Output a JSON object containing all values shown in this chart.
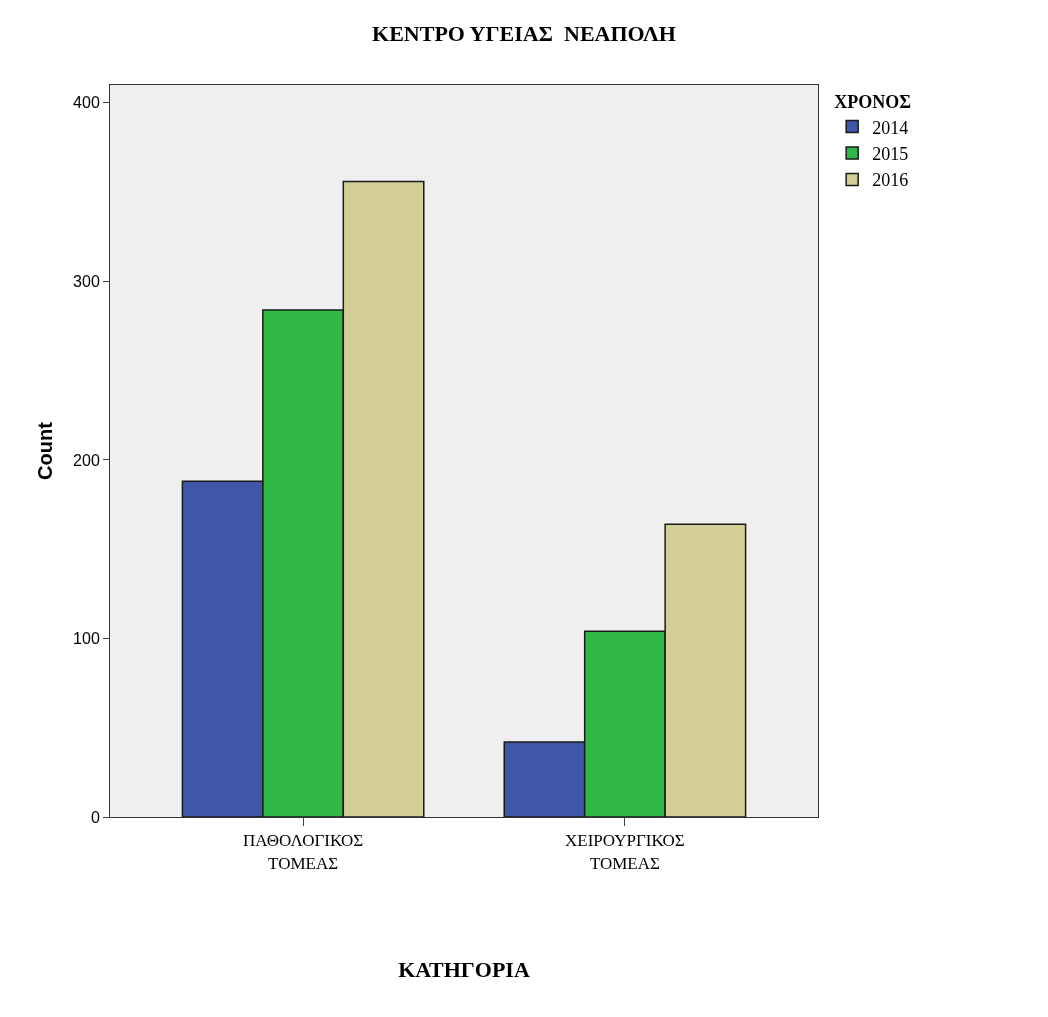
{
  "chart_data": {
    "type": "bar",
    "title": "ΚΕΝΤΡΟ ΥΓΕΙΑΣ  ΝΕΑΠΟΛΗ",
    "xlabel": "ΚΑΤΗΓΟΡΙΑ",
    "ylabel": "Count",
    "legend_title": "ΧΡΟΝΟΣ",
    "categories": [
      "ΠΑΘΟΛΟΓΙΚΟΣ\nΤΟΜΕΑΣ",
      "ΧΕΙΡΟΥΡΓΙΚΟΣ\nΤΟΜΕΑΣ"
    ],
    "series": [
      {
        "name": "2014",
        "color": "#3f57a8",
        "values": [
          188,
          42
        ]
      },
      {
        "name": "2015",
        "color": "#30b847",
        "values": [
          284,
          104
        ]
      },
      {
        "name": "2016",
        "color": "#d3cd96",
        "values": [
          356,
          164
        ]
      }
    ],
    "ylim": [
      0,
      410
    ],
    "yticks": [
      0,
      100,
      200,
      300,
      400
    ],
    "grid": false,
    "legend": "top right"
  }
}
